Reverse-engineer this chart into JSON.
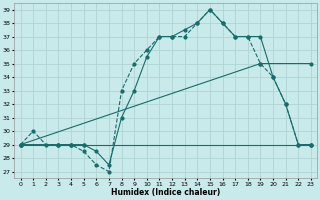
{
  "bg_color": "#c8eaea",
  "grid_color": "#b0d4d4",
  "line_color": "#1a6b6b",
  "xlabel": "Humidex (Indice chaleur)",
  "xmin": 0,
  "xmax": 23,
  "ymin": 27,
  "ymax": 39,
  "curve1_x": [
    0,
    1,
    2,
    3,
    4,
    5,
    6,
    7,
    8,
    9,
    10,
    11,
    12,
    13,
    14,
    15,
    16,
    17,
    18,
    19,
    20,
    21,
    22,
    23
  ],
  "curve1_y": [
    29,
    30,
    29,
    29,
    29,
    28.5,
    27.5,
    27,
    33,
    35,
    36,
    37,
    37,
    37,
    38,
    39,
    38,
    37,
    37,
    35,
    34,
    32,
    29,
    29
  ],
  "curve2_x": [
    0,
    3,
    4,
    5,
    23
  ],
  "curve2_y": [
    29,
    29,
    29,
    29,
    29
  ],
  "curve3_x": [
    0,
    19,
    23
  ],
  "curve3_y": [
    29,
    35,
    35
  ],
  "curve4_x": [
    0,
    3,
    4,
    5,
    6,
    7,
    8,
    9,
    10,
    11,
    12,
    13,
    14,
    15,
    16,
    17,
    18,
    19,
    20,
    21,
    22,
    23
  ],
  "curve4_y": [
    29,
    29,
    29,
    29,
    28.5,
    27.5,
    31,
    33,
    35.5,
    37,
    37,
    37.5,
    38,
    39,
    38,
    37,
    37,
    37,
    34,
    32,
    29,
    29
  ]
}
